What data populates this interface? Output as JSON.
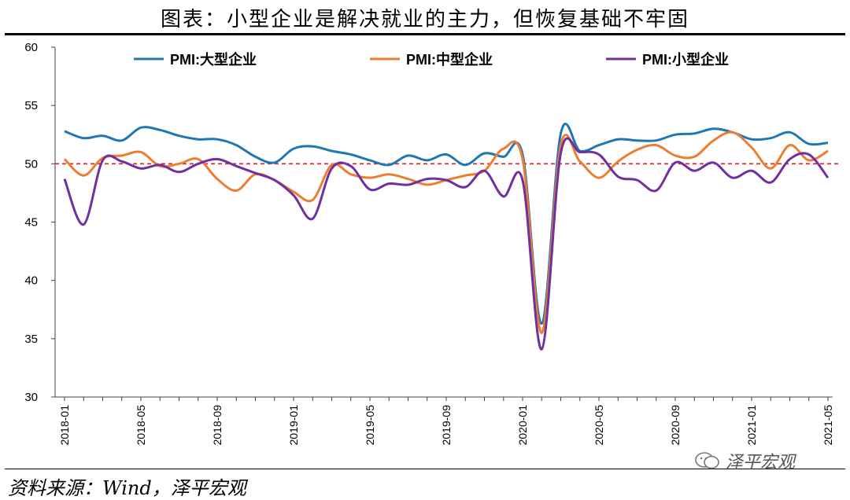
{
  "page": {
    "title": "图表：小型企业是解决就业的主力，但恢复基础不牢固",
    "source": "资料来源：Wind，泽平宏观",
    "watermark": "泽平宏观"
  },
  "chart_data": {
    "type": "line",
    "ylim": [
      30,
      60
    ],
    "yticks": [
      30,
      35,
      40,
      45,
      50,
      55,
      60
    ],
    "x": [
      "2018-01",
      "2018-02",
      "2018-03",
      "2018-04",
      "2018-05",
      "2018-06",
      "2018-07",
      "2018-08",
      "2018-09",
      "2018-10",
      "2018-11",
      "2018-12",
      "2019-01",
      "2019-02",
      "2019-03",
      "2019-04",
      "2019-05",
      "2019-06",
      "2019-07",
      "2019-08",
      "2019-09",
      "2019-10",
      "2019-11",
      "2019-12",
      "2020-01",
      "2020-02",
      "2020-03",
      "2020-04",
      "2020-05",
      "2020-06",
      "2020-07",
      "2020-08",
      "2020-09",
      "2020-10",
      "2020-11",
      "2020-12",
      "2021-01",
      "2021-02",
      "2021-03",
      "2021-04",
      "2021-05"
    ],
    "xticks": [
      "2018-01",
      "2018-05",
      "2018-09",
      "2019-01",
      "2019-05",
      "2019-09",
      "2020-01",
      "2020-05",
      "2020-09",
      "2021-01",
      "2021-05"
    ],
    "series": [
      {
        "name": "PMI:大型企业",
        "color": "#1f77b4",
        "values": [
          52.8,
          52.2,
          52.4,
          52.0,
          53.1,
          52.9,
          52.4,
          52.1,
          52.1,
          51.6,
          50.6,
          50.1,
          51.3,
          51.5,
          51.1,
          50.8,
          50.3,
          49.9,
          50.7,
          50.3,
          50.8,
          49.9,
          50.9,
          50.6,
          50.8,
          36.3,
          52.6,
          51.1,
          51.6,
          52.1,
          52.0,
          52.0,
          52.5,
          52.6,
          53.0,
          52.7,
          52.1,
          52.2,
          52.7,
          51.7,
          51.8
        ]
      },
      {
        "name": "PMI:中型企业",
        "color": "#ed7d31",
        "values": [
          50.4,
          49.0,
          50.5,
          50.7,
          51.0,
          49.8,
          50.0,
          50.4,
          48.7,
          47.7,
          49.1,
          48.6,
          47.6,
          46.9,
          49.9,
          49.1,
          48.8,
          49.1,
          48.7,
          48.2,
          48.6,
          49.0,
          49.4,
          51.3,
          50.4,
          35.5,
          51.6,
          50.2,
          48.8,
          50.2,
          51.2,
          51.6,
          50.7,
          50.6,
          52.0,
          52.7,
          51.4,
          49.6,
          51.6,
          50.3,
          51.1
        ]
      },
      {
        "name": "PMI:小型企业",
        "color": "#7030a0",
        "values": [
          48.7,
          44.8,
          50.3,
          50.2,
          49.6,
          49.9,
          49.3,
          50.0,
          50.4,
          49.8,
          49.2,
          48.6,
          47.3,
          45.3,
          49.6,
          49.8,
          47.8,
          48.3,
          48.2,
          48.7,
          48.6,
          48.0,
          49.4,
          47.2,
          48.6,
          34.1,
          50.9,
          51.0,
          50.8,
          48.9,
          48.6,
          47.7,
          50.1,
          49.4,
          50.1,
          48.8,
          49.4,
          48.4,
          50.4,
          50.8,
          48.8
        ]
      }
    ],
    "reference_line": {
      "value": 50,
      "color": "#e31a1c",
      "style": "dashed"
    },
    "legend_position": "top"
  }
}
